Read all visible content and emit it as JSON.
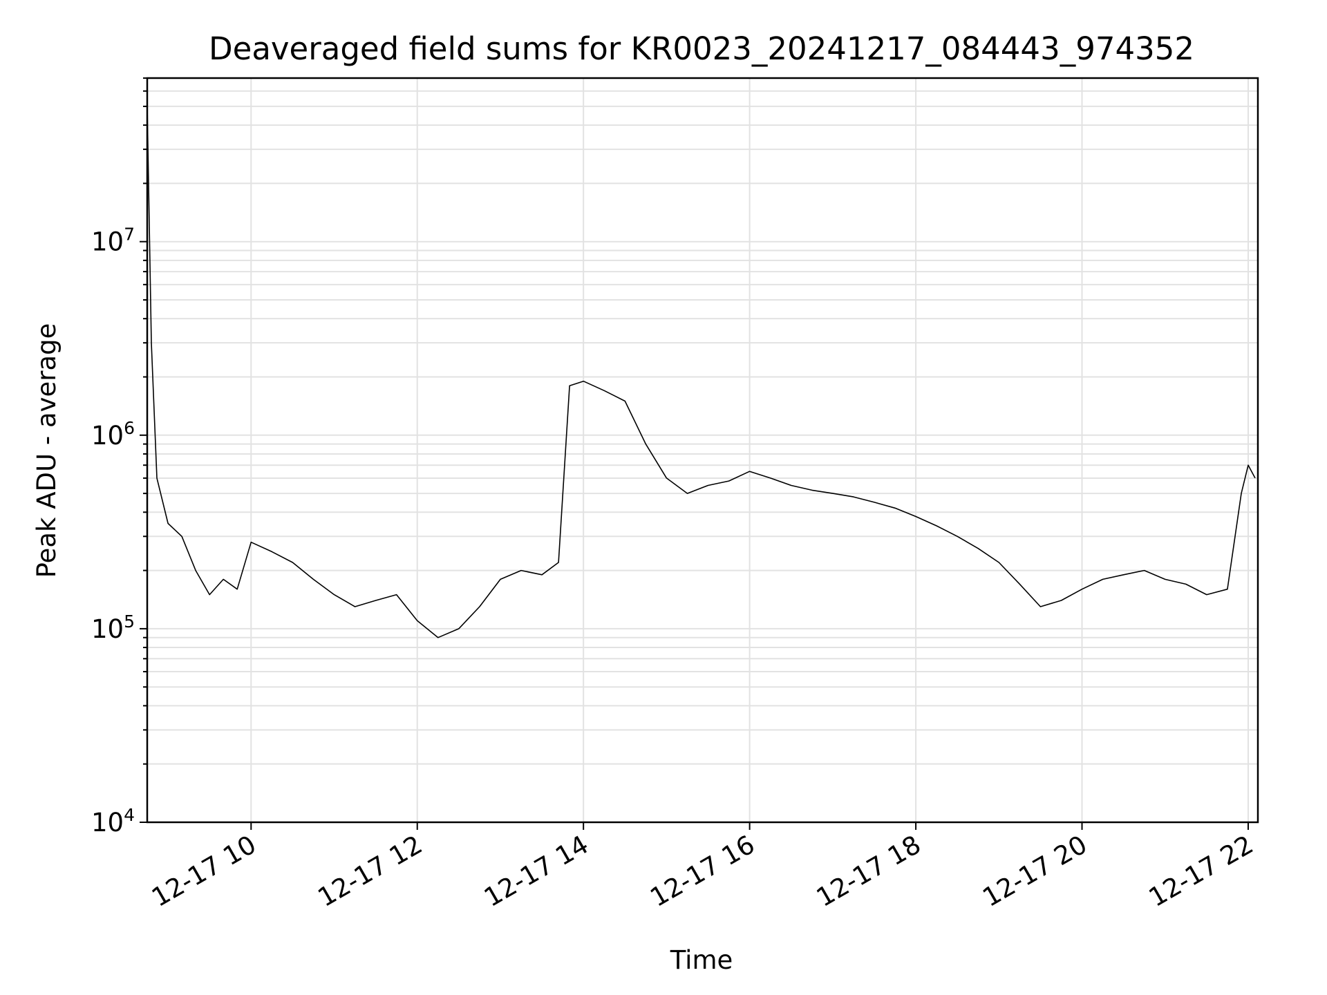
{
  "chart_data": {
    "type": "line",
    "title": "Deaveraged field sums for KR0023_20241217_084443_974352",
    "xlabel": "Time",
    "ylabel": "Peak ADU - average",
    "x_ticks": [
      "12-17 10",
      "12-17 12",
      "12-17 14",
      "12-17 16",
      "12-17 18",
      "12-17 20",
      "12-17 22"
    ],
    "x_tick_values": [
      "2024-12-17 10:00",
      "2024-12-17 12:00",
      "2024-12-17 14:00",
      "2024-12-17 16:00",
      "2024-12-17 18:00",
      "2024-12-17 20:00",
      "2024-12-17 22:00"
    ],
    "xlim": [
      "2024-12-17 08:45",
      "2024-12-17 22:07"
    ],
    "y_scale": "log",
    "ylim": [
      10000,
      70000000
    ],
    "y_ticks": [
      {
        "base": "10",
        "exp": "4",
        "value": 10000
      },
      {
        "base": "10",
        "exp": "5",
        "value": 100000
      },
      {
        "base": "10",
        "exp": "6",
        "value": 1000000
      },
      {
        "base": "10",
        "exp": "7",
        "value": 10000000
      }
    ],
    "grid": true,
    "line_color": "#000000",
    "series": [
      {
        "x": [
          "2024-12-17 08:45",
          "2024-12-17 08:48",
          "2024-12-17 08:52",
          "2024-12-17 09:00",
          "2024-12-17 09:10",
          "2024-12-17 09:20",
          "2024-12-17 09:30",
          "2024-12-17 09:40",
          "2024-12-17 09:50",
          "2024-12-17 10:00",
          "2024-12-17 10:15",
          "2024-12-17 10:30",
          "2024-12-17 10:45",
          "2024-12-17 11:00",
          "2024-12-17 11:15",
          "2024-12-17 11:30",
          "2024-12-17 11:45",
          "2024-12-17 12:00",
          "2024-12-17 12:15",
          "2024-12-17 12:30",
          "2024-12-17 12:45",
          "2024-12-17 13:00",
          "2024-12-17 13:15",
          "2024-12-17 13:30",
          "2024-12-17 13:42",
          "2024-12-17 13:50",
          "2024-12-17 14:00",
          "2024-12-17 14:15",
          "2024-12-17 14:30",
          "2024-12-17 14:45",
          "2024-12-17 15:00",
          "2024-12-17 15:15",
          "2024-12-17 15:30",
          "2024-12-17 15:45",
          "2024-12-17 16:00",
          "2024-12-17 16:15",
          "2024-12-17 16:30",
          "2024-12-17 16:45",
          "2024-12-17 17:00",
          "2024-12-17 17:15",
          "2024-12-17 17:30",
          "2024-12-17 17:45",
          "2024-12-17 18:00",
          "2024-12-17 18:15",
          "2024-12-17 18:30",
          "2024-12-17 18:45",
          "2024-12-17 19:00",
          "2024-12-17 19:15",
          "2024-12-17 19:30",
          "2024-12-17 19:45",
          "2024-12-17 20:00",
          "2024-12-17 20:15",
          "2024-12-17 20:30",
          "2024-12-17 20:45",
          "2024-12-17 21:00",
          "2024-12-17 21:15",
          "2024-12-17 21:30",
          "2024-12-17 21:45",
          "2024-12-17 21:55",
          "2024-12-17 22:00",
          "2024-12-17 22:05"
        ],
        "y": [
          50000000,
          3000000,
          600000,
          350000,
          300000,
          200000,
          150000,
          180000,
          160000,
          280000,
          250000,
          220000,
          180000,
          150000,
          130000,
          140000,
          150000,
          110000,
          90000,
          100000,
          130000,
          180000,
          200000,
          190000,
          220000,
          1800000,
          1900000,
          1700000,
          1500000,
          900000,
          600000,
          500000,
          550000,
          580000,
          650000,
          600000,
          550000,
          520000,
          500000,
          480000,
          450000,
          420000,
          380000,
          340000,
          300000,
          260000,
          220000,
          170000,
          130000,
          140000,
          160000,
          180000,
          190000,
          200000,
          180000,
          170000,
          150000,
          160000,
          500000,
          700000,
          600000
        ]
      }
    ]
  }
}
